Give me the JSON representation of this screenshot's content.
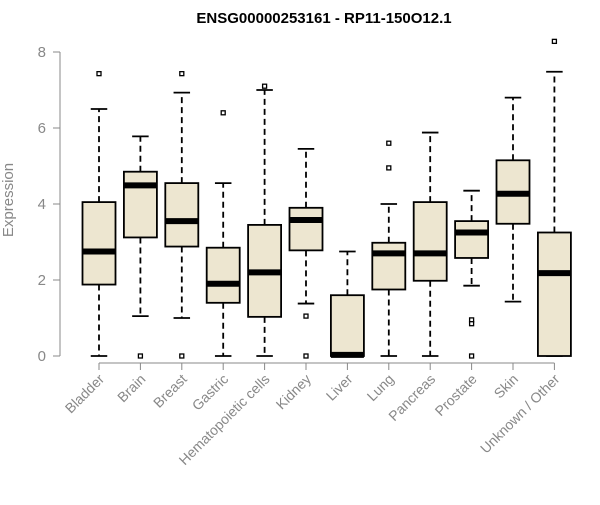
{
  "chart_data": {
    "type": "box",
    "title": "ENSG00000253161 - RP11-150O12.1",
    "ylabel": "Expression",
    "xlabel": "",
    "ylim": [
      0,
      8.4
    ],
    "yticks": [
      0,
      2,
      4,
      6,
      8
    ],
    "grid": false,
    "colors": {
      "box_fill": "#ede6d0",
      "stroke": "#000000",
      "axis": "#888888",
      "label": "#888888"
    },
    "categories": [
      "Bladder",
      "Brain",
      "Breast",
      "Gastric",
      "Hematopoietic cells",
      "Kidney",
      "Liver",
      "Lung",
      "Pancreas",
      "Prostate",
      "Skin",
      "Unknown / Other"
    ],
    "boxes": [
      {
        "category": "Bladder",
        "whisker_low": 0.0,
        "q1": 1.88,
        "median": 2.75,
        "q3": 4.05,
        "whisker_high": 6.5,
        "outliers": [
          7.43
        ]
      },
      {
        "category": "Brain",
        "whisker_low": 1.05,
        "q1": 3.12,
        "median": 4.49,
        "q3": 4.85,
        "whisker_high": 5.78,
        "outliers": [
          0.0
        ]
      },
      {
        "category": "Breast",
        "whisker_low": 1.0,
        "q1": 2.88,
        "median": 3.55,
        "q3": 4.55,
        "whisker_high": 6.93,
        "outliers": [
          0.0,
          7.43
        ]
      },
      {
        "category": "Gastric",
        "whisker_low": 0.0,
        "q1": 1.4,
        "median": 1.9,
        "q3": 2.85,
        "whisker_high": 4.55,
        "outliers": [
          6.4
        ]
      },
      {
        "category": "Hematopoietic cells",
        "whisker_low": 0.0,
        "q1": 1.03,
        "median": 2.2,
        "q3": 3.45,
        "whisker_high": 7.0,
        "outliers": [
          7.1
        ]
      },
      {
        "category": "Kidney",
        "whisker_low": 1.38,
        "q1": 2.78,
        "median": 3.58,
        "q3": 3.9,
        "whisker_high": 5.45,
        "outliers": [
          1.05,
          0.0
        ]
      },
      {
        "category": "Liver",
        "whisker_low": 0.0,
        "q1": 0.0,
        "median": 0.03,
        "q3": 1.6,
        "whisker_high": 2.75,
        "outliers": []
      },
      {
        "category": "Lung",
        "whisker_low": 0.0,
        "q1": 1.75,
        "median": 2.7,
        "q3": 2.98,
        "whisker_high": 4.0,
        "outliers": [
          5.6,
          4.95
        ]
      },
      {
        "category": "Pancreas",
        "whisker_low": 0.0,
        "q1": 1.98,
        "median": 2.7,
        "q3": 4.05,
        "whisker_high": 5.88,
        "outliers": []
      },
      {
        "category": "Prostate",
        "whisker_low": 1.85,
        "q1": 2.58,
        "median": 3.25,
        "q3": 3.55,
        "whisker_high": 4.35,
        "outliers": [
          0.95,
          0.85,
          0.0
        ]
      },
      {
        "category": "Skin",
        "whisker_low": 1.43,
        "q1": 3.48,
        "median": 4.27,
        "q3": 5.15,
        "whisker_high": 6.8,
        "outliers": []
      },
      {
        "category": "Unknown / Other",
        "whisker_low": 0.0,
        "q1": 0.0,
        "median": 2.18,
        "q3": 3.25,
        "whisker_high": 7.48,
        "outliers": [
          8.28
        ]
      }
    ]
  }
}
